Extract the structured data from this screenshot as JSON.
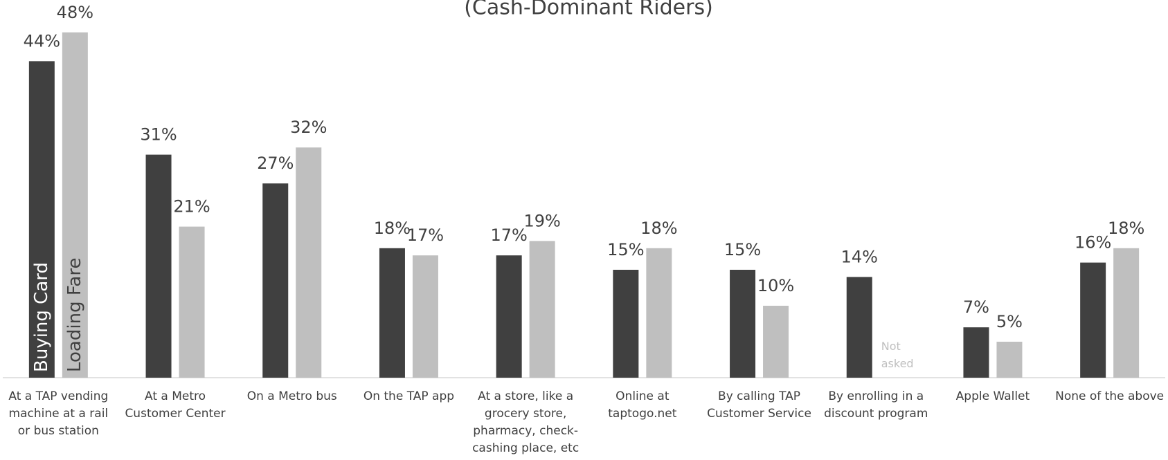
{
  "chart_data": {
    "type": "bar",
    "title": "(Cash-Dominant Riders)",
    "categories": [
      "At a TAP vending machine at a rail or bus station",
      "At a Metro Customer Center",
      "On a Metro bus",
      "On the TAP app",
      "At a store, like a grocery store, pharmacy, check-cashing place, etc",
      "Online at taptogo.net",
      "By calling TAP Customer Service",
      "By enrolling in a discount program",
      "Apple Wallet",
      "None of the above"
    ],
    "series": [
      {
        "name": "Buying Card",
        "color": "#404040",
        "values": [
          44,
          31,
          27,
          18,
          17,
          15,
          15,
          14,
          7,
          16
        ],
        "value_labels": [
          "44%",
          "31%",
          "27%",
          "18%",
          "17%",
          "15%",
          "15%",
          "14%",
          "7%",
          "16%"
        ]
      },
      {
        "name": "Loading Fare",
        "color": "#bfbfbf",
        "values": [
          48,
          21,
          32,
          17,
          19,
          18,
          10,
          null,
          5,
          18
        ],
        "value_labels": [
          "48%",
          "21%",
          "32%",
          "17%",
          "19%",
          "18%",
          "10%",
          null,
          "5%",
          "18%"
        ]
      }
    ],
    "annotation": "Not asked",
    "ylim": [
      0,
      50
    ]
  }
}
